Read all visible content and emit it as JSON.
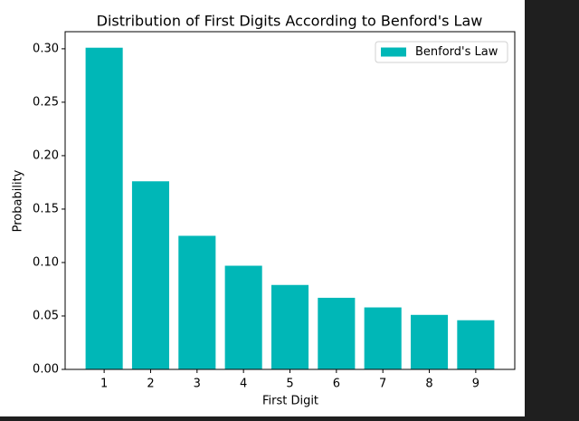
{
  "chart_data": {
    "type": "bar",
    "title": "Distribution of First Digits According to Benford's Law",
    "x_label": "First Digit",
    "y_label": "Probability",
    "x": [
      1,
      2,
      3,
      4,
      5,
      6,
      7,
      8,
      9
    ],
    "series": [
      {
        "name": "Benford's Law",
        "color": "#00b7b7",
        "values": [
          0.301,
          0.176,
          0.125,
          0.097,
          0.079,
          0.067,
          0.058,
          0.051,
          0.046
        ]
      }
    ],
    "xlim": [
      0.16,
      9.84
    ],
    "xticks": [
      1,
      2,
      3,
      4,
      5,
      6,
      7,
      8,
      9
    ],
    "ylim": [
      0,
      0.316
    ],
    "yticks": [
      {
        "value": 0,
        "label": "0.00"
      },
      {
        "value": 0.05,
        "label": "0.05"
      },
      {
        "value": 0.1,
        "label": "0.10"
      },
      {
        "value": 0.15,
        "label": "0.15"
      },
      {
        "value": 0.2,
        "label": "0.20"
      },
      {
        "value": 0.25,
        "label": "0.25"
      },
      {
        "value": 0.3,
        "label": "0.30"
      }
    ],
    "legend": "upper right"
  }
}
